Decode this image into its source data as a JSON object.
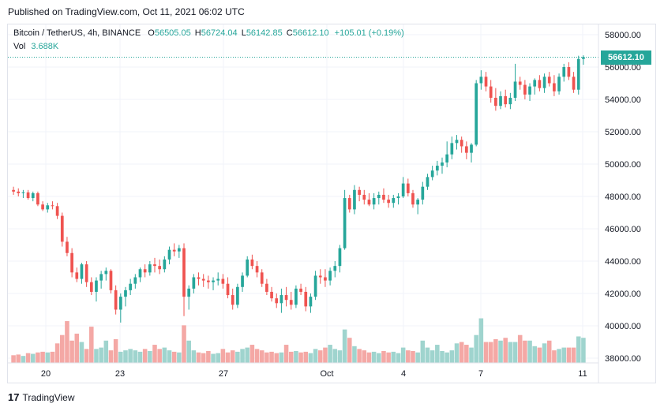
{
  "header": {
    "published": "Published on TradingView.com, Oct 11, 2021 06:02 UTC"
  },
  "legend": {
    "symbol": "Bitcoin / TetherUS, 4h, BINANCE",
    "o_label": "O",
    "o_value": "56505.05",
    "h_label": "H",
    "h_value": "56724.04",
    "l_label": "L",
    "l_value": "56142.85",
    "c_label": "C",
    "c_value": "56612.10",
    "change": "+105.01 (+0.19%)",
    "vol_label": "Vol",
    "vol_value": "3.688K"
  },
  "last_price_label": "56612.10",
  "footer": {
    "brand": "TradingView",
    "logo": "17"
  },
  "colors": {
    "up": "#26a69a",
    "down": "#ef5350",
    "up_vol": "#9fd4ce",
    "down_vol": "#f4a8a5"
  },
  "chart_data": {
    "type": "candlestick",
    "x_ticks": [
      "20",
      "23",
      "27",
      "Oct",
      "4",
      "7",
      "11"
    ],
    "y_ticks": [
      "58000.00",
      "56000.00",
      "54000.00",
      "52000.00",
      "50000.00",
      "48000.00",
      "46000.00",
      "44000.00",
      "42000.00",
      "40000.00",
      "38000.00"
    ],
    "ylim": [
      38000,
      58000
    ],
    "last_price": 56612.1,
    "series": [
      {
        "name": "Bitcoin / TetherUS",
        "candles": [
          [
            48400,
            48600,
            48100,
            48300
          ],
          [
            48300,
            48500,
            48000,
            48200
          ],
          [
            48200,
            48400,
            47900,
            48250
          ],
          [
            48250,
            48400,
            47800,
            47900
          ],
          [
            47900,
            48300,
            47700,
            48200
          ],
          [
            48200,
            48300,
            47400,
            47500
          ],
          [
            47500,
            47700,
            47100,
            47200
          ],
          [
            47200,
            47600,
            47000,
            47450
          ],
          [
            47450,
            47700,
            47200,
            47400
          ],
          [
            47400,
            47600,
            46600,
            46800
          ],
          [
            46800,
            47000,
            44900,
            45200
          ],
          [
            45200,
            45500,
            44300,
            44500
          ],
          [
            44500,
            44800,
            43000,
            43300
          ],
          [
            43300,
            43600,
            42700,
            42900
          ],
          [
            42900,
            43900,
            42600,
            43800
          ],
          [
            43800,
            44000,
            42400,
            42700
          ],
          [
            42700,
            43000,
            41900,
            42100
          ],
          [
            42100,
            43000,
            41500,
            42800
          ],
          [
            42800,
            43400,
            42300,
            43200
          ],
          [
            43200,
            43600,
            42800,
            43400
          ],
          [
            43400,
            43500,
            42000,
            42200
          ],
          [
            42200,
            42500,
            40700,
            41000
          ],
          [
            41000,
            42000,
            40200,
            41800
          ],
          [
            41800,
            42400,
            41200,
            42200
          ],
          [
            42200,
            42900,
            41900,
            42600
          ],
          [
            42600,
            43200,
            42300,
            43000
          ],
          [
            43000,
            43600,
            42700,
            43500
          ],
          [
            43500,
            43800,
            43000,
            43300
          ],
          [
            43300,
            44000,
            43100,
            43800
          ],
          [
            43800,
            44200,
            43300,
            43700
          ],
          [
            43700,
            44100,
            43200,
            43500
          ],
          [
            43500,
            44300,
            43300,
            44100
          ],
          [
            44100,
            44900,
            43800,
            44700
          ],
          [
            44700,
            45100,
            44300,
            44600
          ],
          [
            44600,
            45000,
            44200,
            44800
          ],
          [
            44800,
            45100,
            40600,
            41800
          ],
          [
            41800,
            42500,
            41000,
            42300
          ],
          [
            42300,
            43200,
            42000,
            43000
          ],
          [
            43000,
            43300,
            42500,
            42900
          ],
          [
            42900,
            43200,
            42400,
            42800
          ],
          [
            42800,
            43100,
            42300,
            42700
          ],
          [
            42700,
            43000,
            42200,
            42800
          ],
          [
            42800,
            43300,
            42500,
            42900
          ],
          [
            42900,
            43200,
            42300,
            42600
          ],
          [
            42600,
            43000,
            41700,
            41900
          ],
          [
            41900,
            42300,
            41000,
            41300
          ],
          [
            41300,
            42600,
            41100,
            42400
          ],
          [
            42400,
            43300,
            42100,
            43100
          ],
          [
            43100,
            44300,
            43000,
            44100
          ],
          [
            44100,
            44400,
            43500,
            43700
          ],
          [
            43700,
            44000,
            43000,
            43300
          ],
          [
            43300,
            43500,
            42400,
            42600
          ],
          [
            42600,
            42900,
            41900,
            42100
          ],
          [
            42100,
            42400,
            41500,
            41700
          ],
          [
            41700,
            42000,
            41100,
            41400
          ],
          [
            41400,
            42300,
            40800,
            41900
          ],
          [
            41900,
            42400,
            41200,
            41600
          ],
          [
            41600,
            42100,
            41000,
            41300
          ],
          [
            41300,
            42500,
            41100,
            42300
          ],
          [
            42300,
            42600,
            41900,
            42100
          ],
          [
            42100,
            42400,
            40900,
            41200
          ],
          [
            41200,
            42000,
            40800,
            41800
          ],
          [
            41800,
            43400,
            41600,
            43100
          ],
          [
            43100,
            43500,
            42600,
            43000
          ],
          [
            43000,
            43500,
            42400,
            42800
          ],
          [
            42800,
            43600,
            42500,
            43400
          ],
          [
            43400,
            44000,
            43000,
            43700
          ],
          [
            43700,
            45000,
            43300,
            44800
          ],
          [
            44800,
            48400,
            44700,
            47900
          ],
          [
            47900,
            48100,
            47000,
            47200
          ],
          [
            47200,
            48700,
            46900,
            48400
          ],
          [
            48400,
            48600,
            47700,
            48100
          ],
          [
            48100,
            48400,
            47500,
            47800
          ],
          [
            47800,
            48200,
            47400,
            47500
          ],
          [
            47500,
            48200,
            47200,
            47900
          ],
          [
            47900,
            48300,
            47500,
            48100
          ],
          [
            48100,
            48500,
            47600,
            47800
          ],
          [
            47800,
            48100,
            47300,
            47600
          ],
          [
            47600,
            48100,
            47300,
            47900
          ],
          [
            47900,
            48200,
            47500,
            48000
          ],
          [
            48000,
            49200,
            47900,
            48800
          ],
          [
            48800,
            49100,
            48000,
            48200
          ],
          [
            48200,
            48400,
            47300,
            47500
          ],
          [
            47500,
            47900,
            46900,
            47800
          ],
          [
            47800,
            48900,
            47500,
            48600
          ],
          [
            48600,
            49400,
            48400,
            49200
          ],
          [
            49200,
            49900,
            49000,
            49600
          ],
          [
            49600,
            50200,
            49300,
            49900
          ],
          [
            49900,
            50400,
            49400,
            50100
          ],
          [
            50100,
            51400,
            49800,
            50600
          ],
          [
            50600,
            51700,
            50300,
            51300
          ],
          [
            51300,
            51800,
            50900,
            51500
          ],
          [
            51500,
            51700,
            50700,
            51100
          ],
          [
            51100,
            51400,
            50300,
            50700
          ],
          [
            50700,
            51300,
            50100,
            51200
          ],
          [
            51200,
            55200,
            51100,
            55000
          ],
          [
            55000,
            55800,
            54600,
            55400
          ],
          [
            55400,
            55700,
            54500,
            54800
          ],
          [
            54800,
            55200,
            53800,
            54100
          ],
          [
            54100,
            54700,
            53300,
            53600
          ],
          [
            53600,
            54500,
            53400,
            54200
          ],
          [
            54200,
            54600,
            53500,
            53700
          ],
          [
            53700,
            54400,
            53400,
            54100
          ],
          [
            54100,
            56200,
            53900,
            55100
          ],
          [
            55100,
            55400,
            54600,
            54900
          ],
          [
            54900,
            55200,
            54000,
            54300
          ],
          [
            54300,
            55000,
            53900,
            54800
          ],
          [
            54800,
            55300,
            54300,
            55200
          ],
          [
            55200,
            55500,
            54500,
            54700
          ],
          [
            54700,
            55600,
            54400,
            55400
          ],
          [
            55400,
            55700,
            54800,
            55000
          ],
          [
            55000,
            55500,
            54200,
            54500
          ],
          [
            54500,
            55600,
            54300,
            55400
          ],
          [
            55400,
            56200,
            55100,
            56000
          ],
          [
            56000,
            56300,
            55200,
            55400
          ],
          [
            55400,
            55700,
            54400,
            54600
          ],
          [
            54600,
            56700,
            54300,
            56500
          ],
          [
            56505,
            56724,
            56143,
            56612
          ]
        ],
        "volumes": [
          0.55,
          0.6,
          0.5,
          0.7,
          0.65,
          0.75,
          0.8,
          0.75,
          0.8,
          1.4,
          2.0,
          3.0,
          1.6,
          2.1,
          1.5,
          1.0,
          2.6,
          1.0,
          1.1,
          1.6,
          0.9,
          1.7,
          0.8,
          0.9,
          1.0,
          0.9,
          0.8,
          1.0,
          0.85,
          1.3,
          1.0,
          1.1,
          0.9,
          0.8,
          0.75,
          2.7,
          1.6,
          0.9,
          0.75,
          0.7,
          0.85,
          0.65,
          0.7,
          1.0,
          0.75,
          0.9,
          0.8,
          1.0,
          1.1,
          1.3,
          1.0,
          0.9,
          0.75,
          0.8,
          0.7,
          0.75,
          1.3,
          0.8,
          0.85,
          0.75,
          0.8,
          0.7,
          1.0,
          0.9,
          1.1,
          1.3,
          1.0,
          0.9,
          2.4,
          1.8,
          1.2,
          1.0,
          0.9,
          0.75,
          0.8,
          0.7,
          0.85,
          0.75,
          0.8,
          0.7,
          1.1,
          0.9,
          0.85,
          0.75,
          1.6,
          1.1,
          0.9,
          1.3,
          0.85,
          0.75,
          0.9,
          1.4,
          1.5,
          1.3,
          1.1,
          2.0,
          3.2,
          1.5,
          1.5,
          1.7,
          1.6,
          1.8,
          1.5,
          1.5,
          2.0,
          1.6,
          1.6,
          1.2,
          1.1,
          1.4,
          1.6,
          0.9,
          1.0,
          1.1,
          1.1,
          1.1,
          1.9,
          1.8,
          2.1,
          2.0,
          1.6,
          2.0,
          0.55
        ],
        "vol_scale_max": 3.4
      }
    ]
  }
}
